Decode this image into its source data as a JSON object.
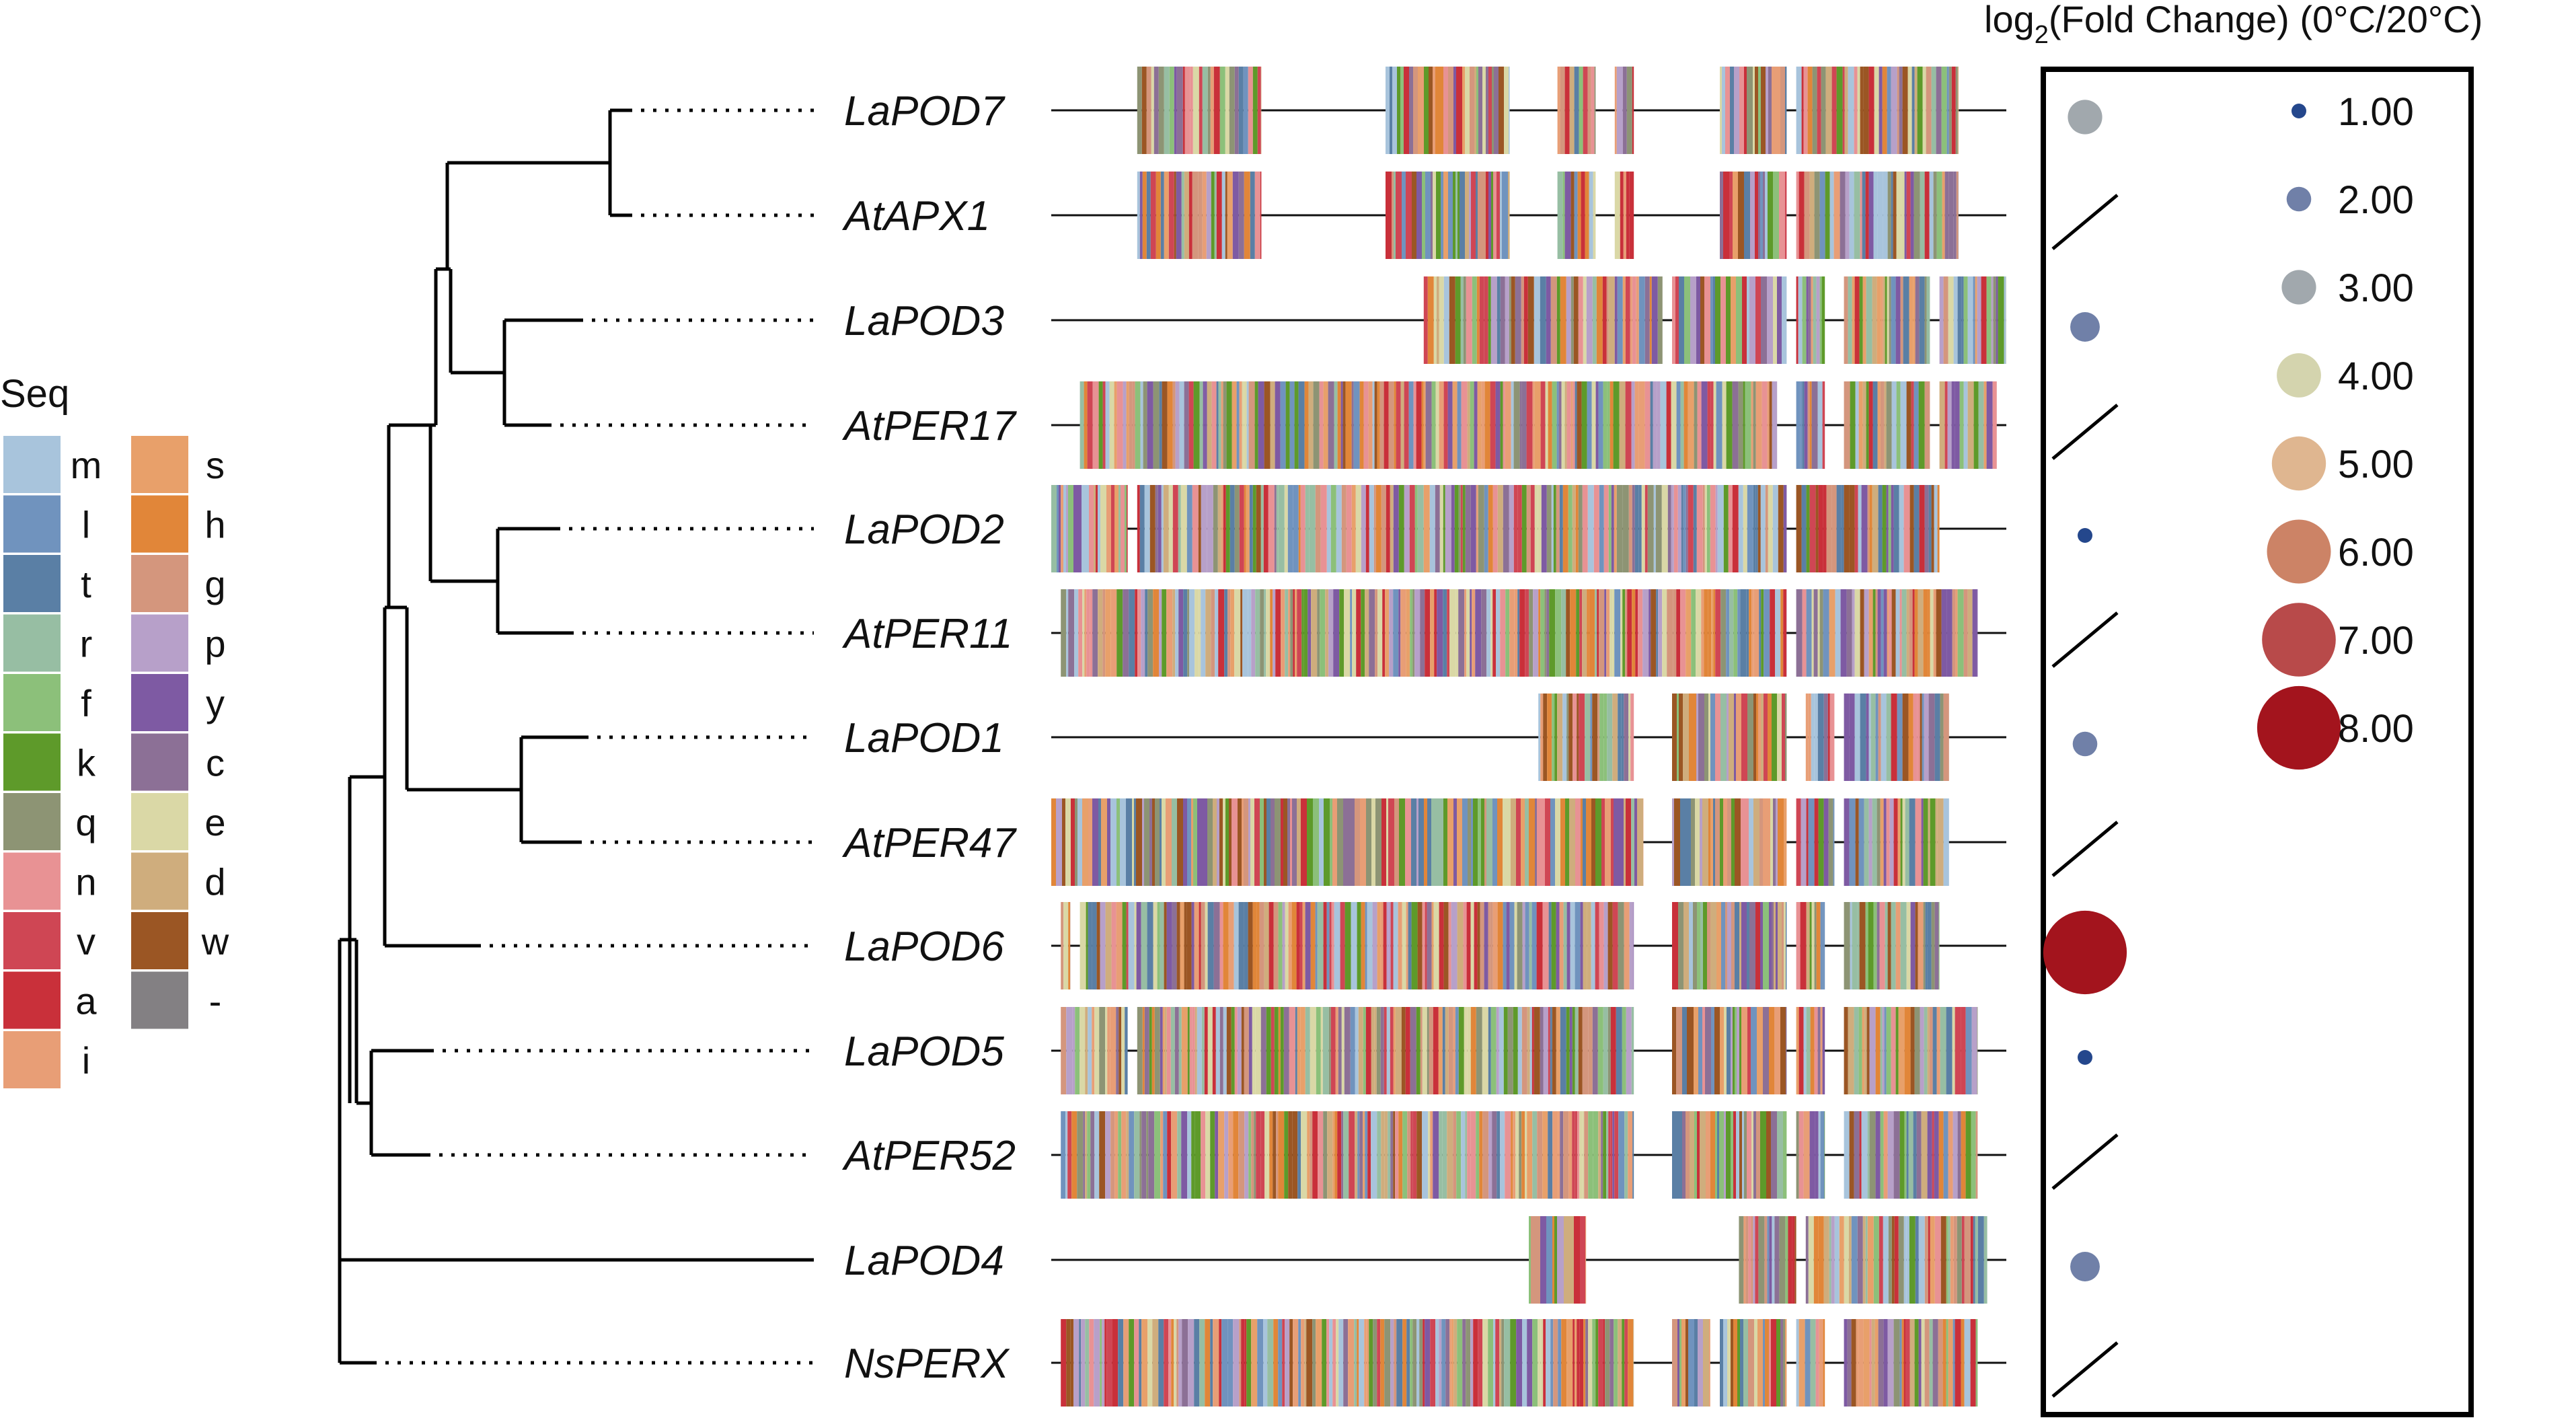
{
  "seq_legend": {
    "title": "Seq",
    "items": [
      {
        "letter": "m",
        "color": "#a8c4dc"
      },
      {
        "letter": "l",
        "color": "#7093be"
      },
      {
        "letter": "t",
        "color": "#5a7fa5"
      },
      {
        "letter": "r",
        "color": "#97bea3"
      },
      {
        "letter": "f",
        "color": "#8cc07a"
      },
      {
        "letter": "k",
        "color": "#5e9a2a"
      },
      {
        "letter": "q",
        "color": "#8d9474"
      },
      {
        "letter": "n",
        "color": "#e89294"
      },
      {
        "letter": "v",
        "color": "#cf4654"
      },
      {
        "letter": "a",
        "color": "#c9303a"
      },
      {
        "letter": "i",
        "color": "#e89e76"
      },
      {
        "letter": "s",
        "color": "#e8a06a"
      },
      {
        "letter": "h",
        "color": "#e18639"
      },
      {
        "letter": "g",
        "color": "#d4967d"
      },
      {
        "letter": "p",
        "color": "#b7a0c9"
      },
      {
        "letter": "y",
        "color": "#7e5aa3"
      },
      {
        "letter": "c",
        "color": "#8c7096"
      },
      {
        "letter": "e",
        "color": "#dad8a6"
      },
      {
        "letter": "d",
        "color": "#cfad7d"
      },
      {
        "letter": "w",
        "color": "#9b5624"
      },
      {
        "letter": "-",
        "color": "#838083"
      }
    ]
  },
  "genes": [
    {
      "name": "LaPOD7",
      "fold_change": 3.0,
      "segments": [
        [
          0.09,
          0.22
        ],
        [
          0.35,
          0.48
        ],
        [
          0.53,
          0.57
        ],
        [
          0.59,
          0.61
        ],
        [
          0.7,
          0.77
        ],
        [
          0.78,
          0.94
        ],
        [
          0.94,
          0.95
        ]
      ]
    },
    {
      "name": "AtAPX1",
      "fold_change": null,
      "segments": [
        [
          0.09,
          0.22
        ],
        [
          0.35,
          0.48
        ],
        [
          0.53,
          0.57
        ],
        [
          0.59,
          0.61
        ],
        [
          0.7,
          0.77
        ],
        [
          0.78,
          0.94
        ],
        [
          0.94,
          0.95
        ]
      ]
    },
    {
      "name": "LaPOD3",
      "fold_change": 2.5,
      "segments": [
        [
          0.39,
          0.64
        ],
        [
          0.65,
          0.77
        ],
        [
          0.78,
          0.81
        ],
        [
          0.83,
          0.92
        ],
        [
          0.93,
          1.0
        ]
      ]
    },
    {
      "name": "AtPER17",
      "fold_change": null,
      "segments": [
        [
          0.03,
          0.76
        ],
        [
          0.78,
          0.81
        ],
        [
          0.83,
          0.92
        ],
        [
          0.93,
          0.99
        ]
      ]
    },
    {
      "name": "LaPOD2",
      "fold_change": 1.0,
      "segments": [
        [
          0.0,
          0.08
        ],
        [
          0.09,
          0.77
        ],
        [
          0.78,
          0.93
        ]
      ]
    },
    {
      "name": "AtPER11",
      "fold_change": null,
      "segments": [
        [
          0.01,
          0.77
        ],
        [
          0.78,
          0.97
        ]
      ]
    },
    {
      "name": "LaPOD1",
      "fold_change": 2.0,
      "segments": [
        [
          0.51,
          0.61
        ],
        [
          0.65,
          0.77
        ],
        [
          0.79,
          0.82
        ],
        [
          0.83,
          0.94
        ]
      ]
    },
    {
      "name": "AtPER47",
      "fold_change": null,
      "segments": [
        [
          0.0,
          0.62
        ],
        [
          0.65,
          0.77
        ],
        [
          0.78,
          0.82
        ],
        [
          0.83,
          0.94
        ]
      ]
    },
    {
      "name": "LaPOD6",
      "fold_change": 8.0,
      "segments": [
        [
          0.01,
          0.02
        ],
        [
          0.03,
          0.61
        ],
        [
          0.65,
          0.77
        ],
        [
          0.78,
          0.81
        ],
        [
          0.83,
          0.93
        ]
      ]
    },
    {
      "name": "LaPOD5",
      "fold_change": 1.0,
      "segments": [
        [
          0.01,
          0.08
        ],
        [
          0.09,
          0.61
        ],
        [
          0.65,
          0.77
        ],
        [
          0.78,
          0.81
        ],
        [
          0.83,
          0.97
        ]
      ]
    },
    {
      "name": "AtPER52",
      "fold_change": null,
      "segments": [
        [
          0.01,
          0.61
        ],
        [
          0.65,
          0.77
        ],
        [
          0.78,
          0.81
        ],
        [
          0.83,
          0.97
        ]
      ]
    },
    {
      "name": "LaPOD4",
      "fold_change": 2.5,
      "segments": [
        [
          0.5,
          0.56
        ],
        [
          0.72,
          0.78
        ],
        [
          0.79,
          0.98
        ]
      ]
    },
    {
      "name": "NsPERX",
      "fold_change": null,
      "segments": [
        [
          0.01,
          0.61
        ],
        [
          0.65,
          0.69
        ],
        [
          0.7,
          0.77
        ],
        [
          0.78,
          0.81
        ],
        [
          0.83,
          0.97
        ]
      ]
    }
  ],
  "fold_change_legend": {
    "title_main": "log",
    "title_sub": "2",
    "title_rest": "(Fold Change) (0°C/20°C)",
    "entries": [
      {
        "label": "1.00",
        "value": 1,
        "color": "#24478c"
      },
      {
        "label": "2.00",
        "value": 2,
        "color": "#7080a8"
      },
      {
        "label": "3.00",
        "value": 3,
        "color": "#a1a8ad"
      },
      {
        "label": "4.00",
        "value": 4,
        "color": "#d4d4ae"
      },
      {
        "label": "5.00",
        "value": 5,
        "color": "#dfb690"
      },
      {
        "label": "6.00",
        "value": 6,
        "color": "#cc8366"
      },
      {
        "label": "7.00",
        "value": 7,
        "color": "#b84a4a"
      },
      {
        "label": "8.00",
        "value": 8,
        "color": "#a3141d"
      }
    ]
  }
}
